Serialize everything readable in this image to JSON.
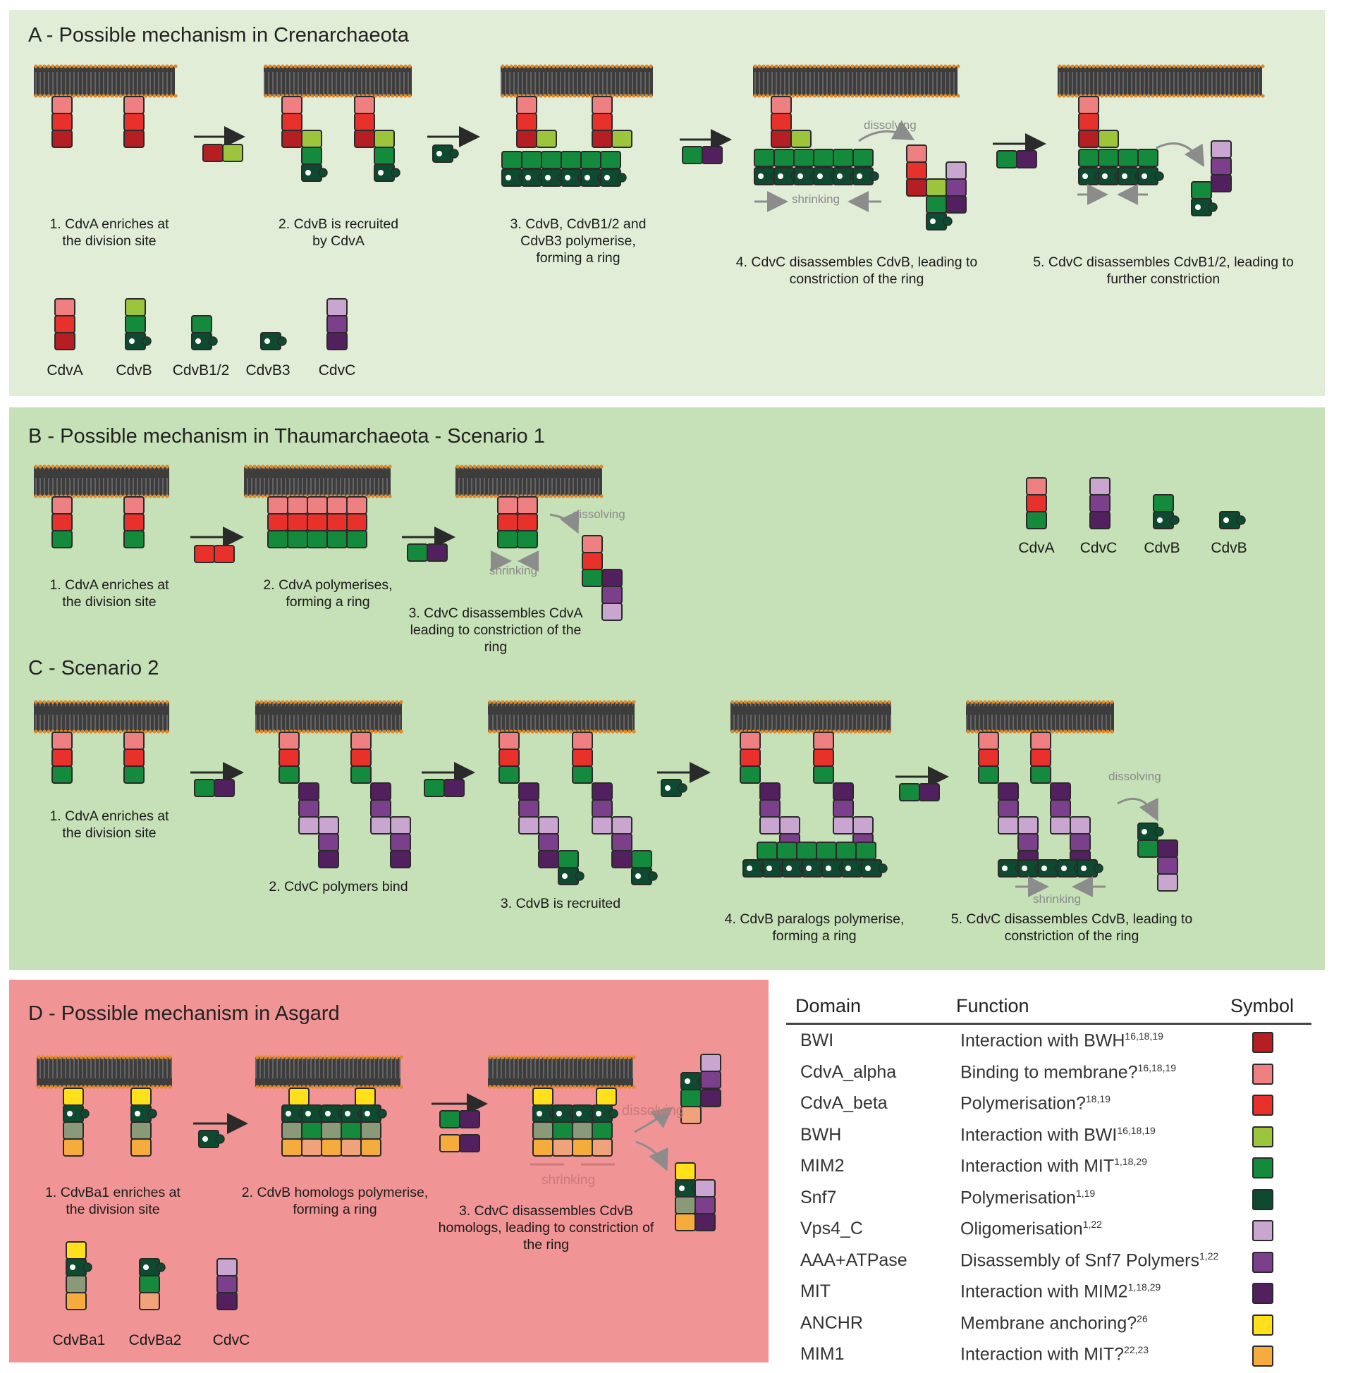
{
  "panels": {
    "A": {
      "title": "A - Possible mechanism in Crenarchaeota",
      "steps": [
        "1. CdvA enriches at the division site",
        "2. CdvB is recruited by CdvA",
        "3. CdvB, CdvB1/2 and CdvB3 polymerise, forming a ring",
        "4. CdvC disassembles CdvB, leading to constriction of the ring",
        "5. CdvC disassembles CdvB1/2, leading to further constriction"
      ],
      "legend": [
        "CdvA",
        "CdvB",
        "CdvB1/2",
        "CdvB3",
        "CdvC"
      ],
      "annotations": {
        "dissolving": "dissolving",
        "shrinking": "shrinking"
      }
    },
    "B": {
      "title": "B - Possible mechanism in Thaumarchaeota - Scenario 1",
      "steps": [
        "1. CdvA enriches at the division site",
        "2. CdvA polymerises, forming a ring",
        "3. CdvC disassembles CdvA leading to constriction of the ring"
      ],
      "legend": [
        "CdvA",
        "CdvC",
        "CdvB",
        "CdvB"
      ],
      "annotations": {
        "dissolving": "dissolving",
        "shrinking": "shrinking"
      }
    },
    "C": {
      "title": "C - Scenario 2",
      "steps": [
        "1. CdvA enriches at the division site",
        "2. CdvC polymers bind",
        "3. CdvB is recruited",
        "4. CdvB paralogs polymerise, forming a ring",
        "5. CdvC disassembles CdvB, leading to constriction of the ring"
      ],
      "annotations": {
        "dissolving": "dissolving",
        "shrinking": "shrinking"
      }
    },
    "D": {
      "title": "D - Possible mechanism in Asgard",
      "steps": [
        "1. CdvBa1 enriches at the division site",
        "2. CdvB homologs polymerise, forming a ring",
        "3. CdvC disassembles CdvB homologs, leading to constriction of the ring"
      ],
      "legend": [
        "CdvBa1",
        "CdvBa2",
        "CdvC"
      ],
      "annotations": {
        "dissolving": "dissolving",
        "shrinking": "shrinking"
      }
    }
  },
  "table": {
    "headers": {
      "domain": "Domain",
      "function": "Function",
      "symbol": "Symbol"
    },
    "rows": [
      {
        "domain": "BWI",
        "function": "Interaction with BWH",
        "refs": "16,18,19",
        "color": "#b51f24"
      },
      {
        "domain": "CdvA_alpha",
        "function": "Binding to membrane?",
        "refs": "16,18,19",
        "color": "#ef8081"
      },
      {
        "domain": "CdvA_beta",
        "function": "Polymerisation?",
        "refs": "18,19",
        "color": "#e8312b"
      },
      {
        "domain": "BWH",
        "function": "Interaction with BWI",
        "refs": "16,18,19",
        "color": "#9cc43c"
      },
      {
        "domain": "MIM2",
        "function": "Interaction with MIT",
        "refs": "1,18,29",
        "color": "#148a3c"
      },
      {
        "domain": "Snf7",
        "function": "Polymerisation",
        "refs": "1,19",
        "color": "#0e4a30"
      },
      {
        "domain": "Vps4_C",
        "function": "Oligomerisation",
        "refs": "1,22",
        "color": "#c9a6cf"
      },
      {
        "domain": "AAA+ATPase",
        "function": "Disassembly of Snf7 Polymers",
        "refs": "1,22",
        "color": "#7c3f8c"
      },
      {
        "domain": "MIT",
        "function": "Interaction with MIM2",
        "refs": "1,18,29",
        "color": "#53205f"
      },
      {
        "domain": "ANCHR",
        "function": "Membrane anchoring?",
        "refs": "26",
        "color": "#ffe01a"
      },
      {
        "domain": "MIM1",
        "function": "Interaction with MIT?",
        "refs": "22,23",
        "color": "#f6ac3c"
      }
    ]
  },
  "colors": {
    "panelA": "#e2edd8",
    "panelBC": "#c6e0b7",
    "panelD": "#f09496",
    "membrane": "#3a3a3a",
    "arrow": "#2a2a2a",
    "grayArrow": "#8c8c8c"
  }
}
